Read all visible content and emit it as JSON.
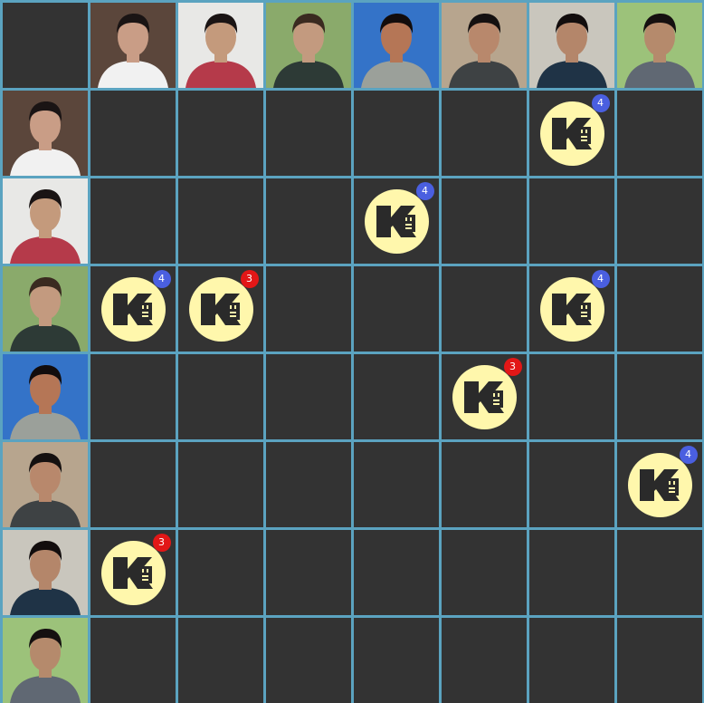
{
  "grid": {
    "rows": 7,
    "cols": 7
  },
  "colors": {
    "grid_line": "#5ba3c0",
    "cell_bg": "#333333",
    "token_bg": "#fff7ac",
    "token_glyph": "#2a2a2a",
    "badge_4": "#4a5fe0",
    "badge_3": "#e21717"
  },
  "people": [
    {
      "id": "p1",
      "photo": "selfie-indoor",
      "bg": "#5b463b",
      "shirt": "#f1f1f1",
      "hair": "#1a1414",
      "skin": "#c99d86"
    },
    {
      "id": "p2",
      "photo": "plaid-shirt-backpack",
      "bg": "#e8e8e6",
      "shirt": "#b53a4a",
      "hair": "#1a1414",
      "skin": "#c49a7c"
    },
    {
      "id": "p3",
      "photo": "outdoor-smile-beard",
      "bg": "#8aaa6b",
      "shirt": "#2d3a36",
      "hair": "#3a2a20",
      "skin": "#c39a7f"
    },
    {
      "id": "p4",
      "photo": "blue-sky-grin",
      "bg": "#3473c8",
      "shirt": "#9ba09a",
      "hair": "#120c0c",
      "skin": "#b57656"
    },
    {
      "id": "p5",
      "photo": "sitting-palm-trees",
      "bg": "#b7a58e",
      "shirt": "#3e4244",
      "hair": "#151010",
      "skin": "#b8886c"
    },
    {
      "id": "p6",
      "photo": "glasses-big-smile",
      "bg": "#c9c6bd",
      "shirt": "#1f3346",
      "hair": "#120d0d",
      "skin": "#b4866a"
    },
    {
      "id": "p7",
      "photo": "garden-plaid",
      "bg": "#9cc27a",
      "shirt": "#606873",
      "hair": "#151010",
      "skin": "#b58a6c"
    }
  ],
  "matches": [
    {
      "row": 1,
      "col": 6,
      "count": "4"
    },
    {
      "row": 2,
      "col": 4,
      "count": "4"
    },
    {
      "row": 3,
      "col": 1,
      "count": "4"
    },
    {
      "row": 3,
      "col": 2,
      "count": "3"
    },
    {
      "row": 3,
      "col": 6,
      "count": "4"
    },
    {
      "row": 4,
      "col": 5,
      "count": "3"
    },
    {
      "row": 5,
      "col": 7,
      "count": "4"
    },
    {
      "row": 6,
      "col": 1,
      "count": "3"
    }
  ]
}
